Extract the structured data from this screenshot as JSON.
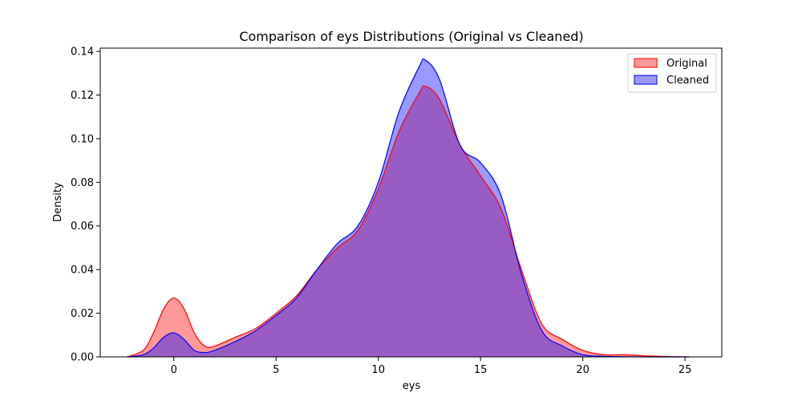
{
  "chart_data": {
    "type": "area",
    "title": "Comparison of eys Distributions (Original vs Cleaned)",
    "xlabel": "eys",
    "ylabel": "Density",
    "xlim": [
      -3.6,
      26.8
    ],
    "ylim": [
      0,
      0.1415
    ],
    "xticks": [
      0,
      5,
      10,
      15,
      20,
      25
    ],
    "yticks": [
      0.0,
      0.02,
      0.04,
      0.06,
      0.08,
      0.1,
      0.12,
      0.14
    ],
    "xtick_labels": [
      "0",
      "5",
      "10",
      "15",
      "20",
      "25"
    ],
    "ytick_labels": [
      "0.00",
      "0.02",
      "0.04",
      "0.06",
      "0.08",
      "0.10",
      "0.12",
      "0.14"
    ],
    "grid": false,
    "legend_position": "top-right",
    "series": [
      {
        "name": "Original",
        "color": "#ff0000",
        "x": [
          -2.3,
          -1.5,
          -1.0,
          -0.5,
          0.0,
          0.5,
          1.0,
          1.5,
          2.0,
          3.0,
          4.0,
          5.0,
          6.0,
          7.0,
          8.0,
          9.0,
          10.0,
          11.0,
          12.0,
          12.3,
          13.0,
          14.0,
          15.0,
          16.0,
          17.0,
          18.0,
          19.0,
          20.0,
          21.0,
          22.0,
          23.0,
          24.0,
          25.2
        ],
        "y": [
          0.0,
          0.003,
          0.011,
          0.022,
          0.027,
          0.022,
          0.011,
          0.005,
          0.005,
          0.009,
          0.013,
          0.02,
          0.028,
          0.04,
          0.05,
          0.058,
          0.077,
          0.103,
          0.121,
          0.124,
          0.118,
          0.097,
          0.083,
          0.068,
          0.04,
          0.015,
          0.008,
          0.003,
          0.001,
          0.001,
          0.0005,
          0.0002,
          0.0
        ]
      },
      {
        "name": "Cleaned",
        "color": "#0000ff",
        "x": [
          -2.3,
          -1.5,
          -1.0,
          -0.5,
          0.0,
          0.5,
          1.0,
          1.5,
          2.0,
          3.0,
          4.0,
          5.0,
          6.0,
          7.0,
          8.0,
          9.0,
          10.0,
          11.0,
          12.0,
          12.3,
          13.0,
          14.0,
          15.0,
          16.0,
          17.0,
          18.0,
          19.0,
          20.0,
          21.0,
          22.0,
          23.0,
          24.0,
          25.2
        ],
        "y": [
          0.0,
          0.001,
          0.004,
          0.009,
          0.011,
          0.008,
          0.003,
          0.002,
          0.003,
          0.007,
          0.012,
          0.019,
          0.027,
          0.04,
          0.052,
          0.06,
          0.08,
          0.112,
          0.133,
          0.136,
          0.127,
          0.097,
          0.089,
          0.074,
          0.038,
          0.012,
          0.005,
          0.001,
          0.0003,
          0.0001,
          0.0,
          0.0,
          0.0
        ]
      }
    ]
  }
}
